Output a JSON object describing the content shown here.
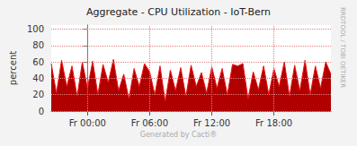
{
  "chart_data": {
    "type": "area",
    "title": "Aggregate - CPU Utilization - IoT-Bern",
    "ylabel": "percent",
    "side_text": "RRDTOOL / TOBI OETIKER",
    "footer": "Generated by Cacti®",
    "x": [
      -3.5,
      -3,
      -2.5,
      -2,
      -1.5,
      -1,
      -0.5,
      0,
      0.5,
      1,
      1.5,
      2,
      2.5,
      3,
      3.5,
      4,
      4.5,
      5,
      5.5,
      6,
      6.5,
      7,
      7.5,
      8,
      8.5,
      9,
      9.5,
      10,
      10.5,
      11,
      11.5,
      12,
      12.5,
      13,
      13.5,
      14,
      14.5,
      15,
      15.5,
      16,
      16.5,
      17,
      17.5,
      18,
      18.5,
      19,
      19.5,
      20,
      20.5,
      21,
      21.5,
      22,
      22.5,
      23,
      23.5
    ],
    "values": [
      58,
      22,
      62,
      30,
      55,
      18,
      60,
      28,
      61,
      20,
      57,
      35,
      63,
      25,
      45,
      15,
      52,
      30,
      58,
      48,
      20,
      55,
      12,
      50,
      25,
      53,
      18,
      56,
      30,
      47,
      22,
      54,
      28,
      52,
      20,
      57,
      55,
      58,
      15,
      48,
      26,
      55,
      20,
      52,
      30,
      60,
      18,
      56,
      25,
      62,
      20,
      55,
      28,
      60,
      45
    ],
    "color": "#b00000",
    "xlim": [
      -3.5,
      23.5
    ],
    "xticks": [
      {
        "value": 0,
        "label": "Fr 00:00"
      },
      {
        "value": 6,
        "label": "Fr 06:00"
      },
      {
        "value": 12,
        "label": "Fr 12:00"
      },
      {
        "value": 18,
        "label": "Fr 18:00"
      }
    ],
    "ylim": [
      0,
      105
    ],
    "yticks": [
      0,
      20,
      40,
      60,
      80,
      100
    ],
    "grid": true
  }
}
